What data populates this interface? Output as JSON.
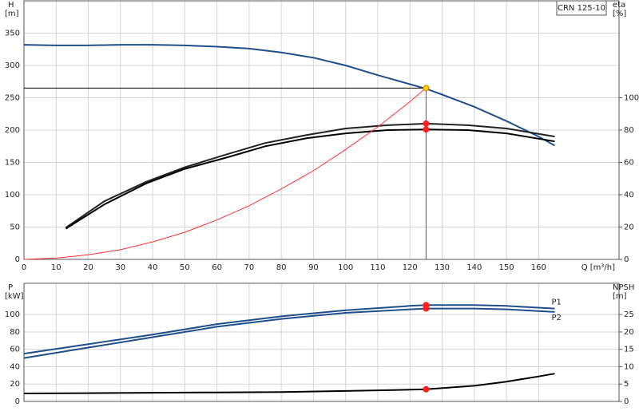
{
  "chart_data": [
    {
      "type": "line",
      "title": "CRN 125-10",
      "x_label": "Q [m³/h]",
      "y_label": "H",
      "y_unit": "[m]",
      "y2_label": "eta",
      "y2_unit": "[%]",
      "xlim": [
        0,
        185
      ],
      "xticks": [
        0,
        10,
        20,
        30,
        40,
        50,
        60,
        70,
        80,
        90,
        100,
        110,
        120,
        130,
        140,
        150,
        160
      ],
      "ylim": [
        0,
        400
      ],
      "yticks": [
        0,
        50,
        100,
        150,
        200,
        250,
        300,
        350
      ],
      "y2lim": [
        0,
        160
      ],
      "y2ticks": [
        0,
        20,
        40,
        60,
        80,
        100
      ],
      "grid": true,
      "series": [
        {
          "color": "#1f4e8c",
          "axis": "y",
          "x": [
            0,
            10,
            20,
            30,
            40,
            50,
            60,
            70,
            80,
            90,
            100,
            110,
            120,
            125,
            130,
            140,
            150,
            160,
            165
          ],
          "values": [
            332,
            331,
            331,
            332,
            332,
            331,
            329,
            326,
            320,
            312,
            300,
            285,
            271,
            264,
            255,
            236,
            214,
            190,
            176
          ]
        },
        {
          "color": "#222222",
          "axis": "y2",
          "x": [
            13,
            25,
            38,
            50,
            63,
            75,
            88,
            100,
            113,
            125,
            138,
            150,
            165
          ],
          "values": [
            19.6,
            36,
            48,
            57,
            65,
            72,
            77,
            81,
            83,
            84,
            83,
            81,
            76
          ]
        },
        {
          "color": "#000000",
          "axis": "y2",
          "x": [
            13,
            25,
            38,
            50,
            63,
            75,
            88,
            100,
            113,
            125,
            138,
            150,
            165
          ],
          "values": [
            19,
            34,
            47,
            56,
            63,
            70,
            75,
            78,
            80,
            80.4,
            80,
            78,
            73
          ]
        },
        {
          "color": "#ff3030",
          "axis": "y",
          "x": [
            0,
            10,
            20,
            30,
            40,
            50,
            60,
            70,
            80,
            90,
            100,
            110,
            120,
            125
          ],
          "values": [
            0,
            2,
            7,
            15,
            27,
            42,
            61,
            83,
            109,
            137,
            170,
            205,
            244,
            265
          ]
        }
      ],
      "markers": [
        {
          "color": "#ffcc00",
          "axis": "y",
          "guides": true,
          "x": [
            125
          ],
          "values": [
            265
          ]
        },
        {
          "color": "#ff2020",
          "axis": "y2",
          "x": [
            125,
            125
          ],
          "values": [
            84,
            80.4
          ]
        }
      ]
    },
    {
      "type": "line",
      "y_label": "P",
      "y_unit": "[kW]",
      "y2_label": "NPSH",
      "y2_unit": "[m]",
      "xlim": [
        0,
        185
      ],
      "ylim": [
        0,
        136
      ],
      "yticks": [
        0,
        20,
        40,
        60,
        80,
        100
      ],
      "y2lim": [
        0,
        34
      ],
      "y2ticks": [
        0,
        5,
        10,
        15,
        20,
        25
      ],
      "grid": true,
      "series": [
        {
          "name": "P1",
          "color": "#1f4e8c",
          "axis": "y",
          "x": [
            0,
            20,
            40,
            60,
            80,
            100,
            120,
            125,
            140,
            150,
            165
          ],
          "values": [
            55,
            66,
            77,
            89,
            98,
            105,
            110,
            111,
            111,
            110,
            107
          ]
        },
        {
          "name": "P2",
          "color": "#1f4e8c",
          "axis": "y",
          "x": [
            0,
            20,
            40,
            60,
            80,
            100,
            120,
            125,
            140,
            150,
            165
          ],
          "values": [
            50,
            62,
            74,
            86,
            95,
            102,
            106,
            107,
            107,
            106,
            103
          ]
        },
        {
          "color": "#000000",
          "axis": "y2",
          "x": [
            0,
            20,
            40,
            60,
            80,
            100,
            110,
            125,
            140,
            150,
            160,
            165
          ],
          "values": [
            2.3,
            2.4,
            2.5,
            2.6,
            2.7,
            3.0,
            3.2,
            3.5,
            4.5,
            5.7,
            7.2,
            8.0
          ]
        }
      ],
      "markers": [
        {
          "color": "#ff2020",
          "axis": "y",
          "x": [
            125,
            125
          ],
          "values": [
            111,
            107
          ]
        },
        {
          "color": "#ff2020",
          "axis": "y2",
          "x": [
            125
          ],
          "values": [
            3.5
          ]
        }
      ]
    }
  ]
}
